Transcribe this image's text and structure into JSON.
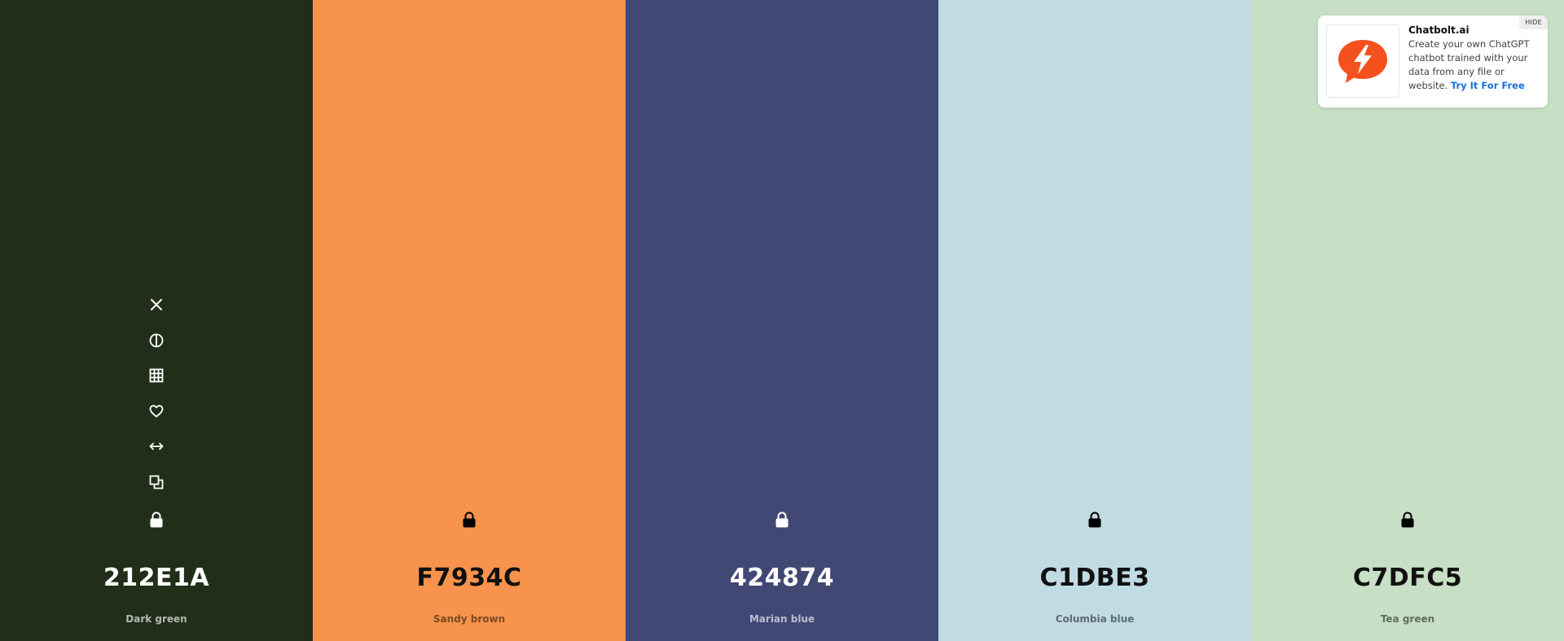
{
  "palette": {
    "colors": [
      {
        "hex": "212E1A",
        "name": "Dark green",
        "bg": "#212E1A",
        "fg": "#FFFFFF",
        "name_color": "#B4B9B0"
      },
      {
        "hex": "F7934C",
        "name": "Sandy brown",
        "bg": "#F7934C",
        "fg": "#111111",
        "name_color": "#7A4A26"
      },
      {
        "hex": "424874",
        "name": "Marian blue",
        "bg": "#424874",
        "fg": "#FFFFFF",
        "name_color": "#B9BCD0"
      },
      {
        "hex": "C1DBE3",
        "name": "Columbia blue",
        "bg": "#C1DBE3",
        "fg": "#111111",
        "name_color": "#5E6D72"
      },
      {
        "hex": "C7DFC5",
        "name": "Tea green",
        "bg": "#C7DFC5",
        "fg": "#111111",
        "name_color": "#5F6E5E"
      }
    ],
    "tool_icons": [
      "close-icon",
      "contrast-icon",
      "grid-icon",
      "heart-icon",
      "drag-arrows-icon",
      "copy-icon",
      "lock-icon"
    ]
  },
  "ad": {
    "title": "Chatbolt.ai",
    "description": "Create your own ChatGPT chatbot trained with your data from any file or website.",
    "cta": "Try It For Free",
    "hide_label": "HIDE",
    "logo_color": "#F4511E",
    "logo_icon": "lightning-bolt-icon"
  }
}
